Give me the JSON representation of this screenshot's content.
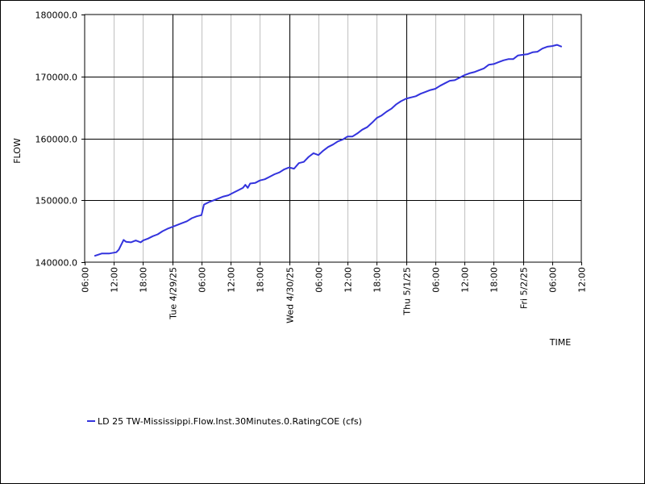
{
  "chart_data": {
    "type": "line",
    "ylabel": "FLOW",
    "xlabel": "TIME",
    "ylim": [
      140000,
      180000
    ],
    "y_ticks": [
      "140000.0",
      "150000.0",
      "160000.0",
      "170000.0",
      "180000.0"
    ],
    "y_tick_values": [
      140000,
      150000,
      160000,
      170000,
      180000
    ],
    "xlim": [
      "2025-04-28 06:00",
      "2025-05-02 12:00"
    ],
    "x_ticks": [
      {
        "t": "2025-04-28 06:00",
        "label": "06:00",
        "major": false
      },
      {
        "t": "2025-04-28 12:00",
        "label": "12:00",
        "major": false
      },
      {
        "t": "2025-04-28 18:00",
        "label": "18:00",
        "major": false
      },
      {
        "t": "2025-04-29 00:00",
        "label": "Tue 4/29/25",
        "major": true
      },
      {
        "t": "2025-04-29 06:00",
        "label": "06:00",
        "major": false
      },
      {
        "t": "2025-04-29 12:00",
        "label": "12:00",
        "major": false
      },
      {
        "t": "2025-04-29 18:00",
        "label": "18:00",
        "major": false
      },
      {
        "t": "2025-04-30 00:00",
        "label": "Wed 4/30/25",
        "major": true
      },
      {
        "t": "2025-04-30 06:00",
        "label": "06:00",
        "major": false
      },
      {
        "t": "2025-04-30 12:00",
        "label": "12:00",
        "major": false
      },
      {
        "t": "2025-04-30 18:00",
        "label": "18:00",
        "major": false
      },
      {
        "t": "2025-05-01 00:00",
        "label": "Thu 5/1/25",
        "major": true
      },
      {
        "t": "2025-05-01 06:00",
        "label": "06:00",
        "major": false
      },
      {
        "t": "2025-05-01 12:00",
        "label": "12:00",
        "major": false
      },
      {
        "t": "2025-05-01 18:00",
        "label": "18:00",
        "major": false
      },
      {
        "t": "2025-05-02 00:00",
        "label": "Fri 5/2/25",
        "major": true
      },
      {
        "t": "2025-05-02 06:00",
        "label": "06:00",
        "major": false
      },
      {
        "t": "2025-05-02 12:00",
        "label": "12:00",
        "major": false
      }
    ],
    "grid": true,
    "legend_position": "bottom-left",
    "series": [
      {
        "name": "LD 25 TW-Mississippi.Flow.Inst.30Minutes.0.RatingCOE (cfs)",
        "color": "#3333dd",
        "points": [
          [
            "2025-04-28 08:00",
            141000
          ],
          [
            "2025-04-28 09:30",
            141400
          ],
          [
            "2025-04-28 11:00",
            141400
          ],
          [
            "2025-04-28 12:30",
            141600
          ],
          [
            "2025-04-28 13:00",
            142000
          ],
          [
            "2025-04-28 14:00",
            143600
          ],
          [
            "2025-04-28 14:30",
            143300
          ],
          [
            "2025-04-28 15:30",
            143200
          ],
          [
            "2025-04-28 16:30",
            143500
          ],
          [
            "2025-04-28 17:30",
            143200
          ],
          [
            "2025-04-28 18:00",
            143500
          ],
          [
            "2025-04-28 19:00",
            143800
          ],
          [
            "2025-04-28 20:00",
            144200
          ],
          [
            "2025-04-28 21:00",
            144500
          ],
          [
            "2025-04-28 22:00",
            145000
          ],
          [
            "2025-04-28 23:00",
            145400
          ],
          [
            "2025-04-29 00:00",
            145700
          ],
          [
            "2025-04-29 01:00",
            146000
          ],
          [
            "2025-04-29 02:00",
            146300
          ],
          [
            "2025-04-29 03:00",
            146600
          ],
          [
            "2025-04-29 04:00",
            147100
          ],
          [
            "2025-04-29 05:00",
            147400
          ],
          [
            "2025-04-29 06:00",
            147600
          ],
          [
            "2025-04-29 06:30",
            149300
          ],
          [
            "2025-04-29 07:30",
            149700
          ],
          [
            "2025-04-29 08:30",
            150000
          ],
          [
            "2025-04-29 09:30",
            150300
          ],
          [
            "2025-04-29 10:30",
            150600
          ],
          [
            "2025-04-29 11:30",
            150800
          ],
          [
            "2025-04-29 12:30",
            151200
          ],
          [
            "2025-04-29 13:30",
            151600
          ],
          [
            "2025-04-29 14:30",
            152000
          ],
          [
            "2025-04-29 15:00",
            152500
          ],
          [
            "2025-04-29 15:30",
            152000
          ],
          [
            "2025-04-29 16:00",
            152700
          ],
          [
            "2025-04-29 17:00",
            152800
          ],
          [
            "2025-04-29 18:00",
            153200
          ],
          [
            "2025-04-29 19:00",
            153400
          ],
          [
            "2025-04-29 20:00",
            153800
          ],
          [
            "2025-04-29 21:00",
            154200
          ],
          [
            "2025-04-29 22:00",
            154500
          ],
          [
            "2025-04-29 23:00",
            155000
          ],
          [
            "2025-04-30 00:00",
            155300
          ],
          [
            "2025-04-30 01:00",
            155100
          ],
          [
            "2025-04-30 02:00",
            156000
          ],
          [
            "2025-04-30 03:00",
            156200
          ],
          [
            "2025-04-30 04:00",
            157000
          ],
          [
            "2025-04-30 05:00",
            157600
          ],
          [
            "2025-04-30 06:00",
            157300
          ],
          [
            "2025-04-30 07:00",
            158000
          ],
          [
            "2025-04-30 08:00",
            158600
          ],
          [
            "2025-04-30 09:00",
            159000
          ],
          [
            "2025-04-30 10:00",
            159500
          ],
          [
            "2025-04-30 11:00",
            159800
          ],
          [
            "2025-04-30 12:00",
            160300
          ],
          [
            "2025-04-30 13:00",
            160300
          ],
          [
            "2025-04-30 14:00",
            160800
          ],
          [
            "2025-04-30 15:00",
            161400
          ],
          [
            "2025-04-30 16:00",
            161800
          ],
          [
            "2025-04-30 17:00",
            162500
          ],
          [
            "2025-04-30 18:00",
            163300
          ],
          [
            "2025-04-30 19:00",
            163700
          ],
          [
            "2025-04-30 20:00",
            164300
          ],
          [
            "2025-04-30 21:00",
            164800
          ],
          [
            "2025-04-30 22:00",
            165500
          ],
          [
            "2025-04-30 23:00",
            166000
          ],
          [
            "2025-05-01 00:00",
            166400
          ],
          [
            "2025-05-01 01:00",
            166600
          ],
          [
            "2025-05-01 02:00",
            166800
          ],
          [
            "2025-05-01 03:00",
            167200
          ],
          [
            "2025-05-01 04:00",
            167500
          ],
          [
            "2025-05-01 05:00",
            167800
          ],
          [
            "2025-05-01 06:00",
            168000
          ],
          [
            "2025-05-01 07:00",
            168500
          ],
          [
            "2025-05-01 08:00",
            168900
          ],
          [
            "2025-05-01 09:00",
            169300
          ],
          [
            "2025-05-01 10:00",
            169400
          ],
          [
            "2025-05-01 11:00",
            169800
          ],
          [
            "2025-05-01 12:00",
            170200
          ],
          [
            "2025-05-01 13:00",
            170500
          ],
          [
            "2025-05-01 14:00",
            170700
          ],
          [
            "2025-05-01 15:00",
            171000
          ],
          [
            "2025-05-01 16:00",
            171300
          ],
          [
            "2025-05-01 17:00",
            171900
          ],
          [
            "2025-05-01 18:00",
            172000
          ],
          [
            "2025-05-01 19:00",
            172300
          ],
          [
            "2025-05-01 20:00",
            172600
          ],
          [
            "2025-05-01 21:00",
            172800
          ],
          [
            "2025-05-01 22:00",
            172800
          ],
          [
            "2025-05-01 23:00",
            173400
          ],
          [
            "2025-05-02 00:00",
            173500
          ],
          [
            "2025-05-02 01:00",
            173600
          ],
          [
            "2025-05-02 02:00",
            173900
          ],
          [
            "2025-05-02 03:00",
            174000
          ],
          [
            "2025-05-02 04:00",
            174500
          ],
          [
            "2025-05-02 05:00",
            174800
          ],
          [
            "2025-05-02 06:00",
            174900
          ],
          [
            "2025-05-02 07:00",
            175100
          ],
          [
            "2025-05-02 08:00",
            174800
          ]
        ]
      }
    ]
  }
}
